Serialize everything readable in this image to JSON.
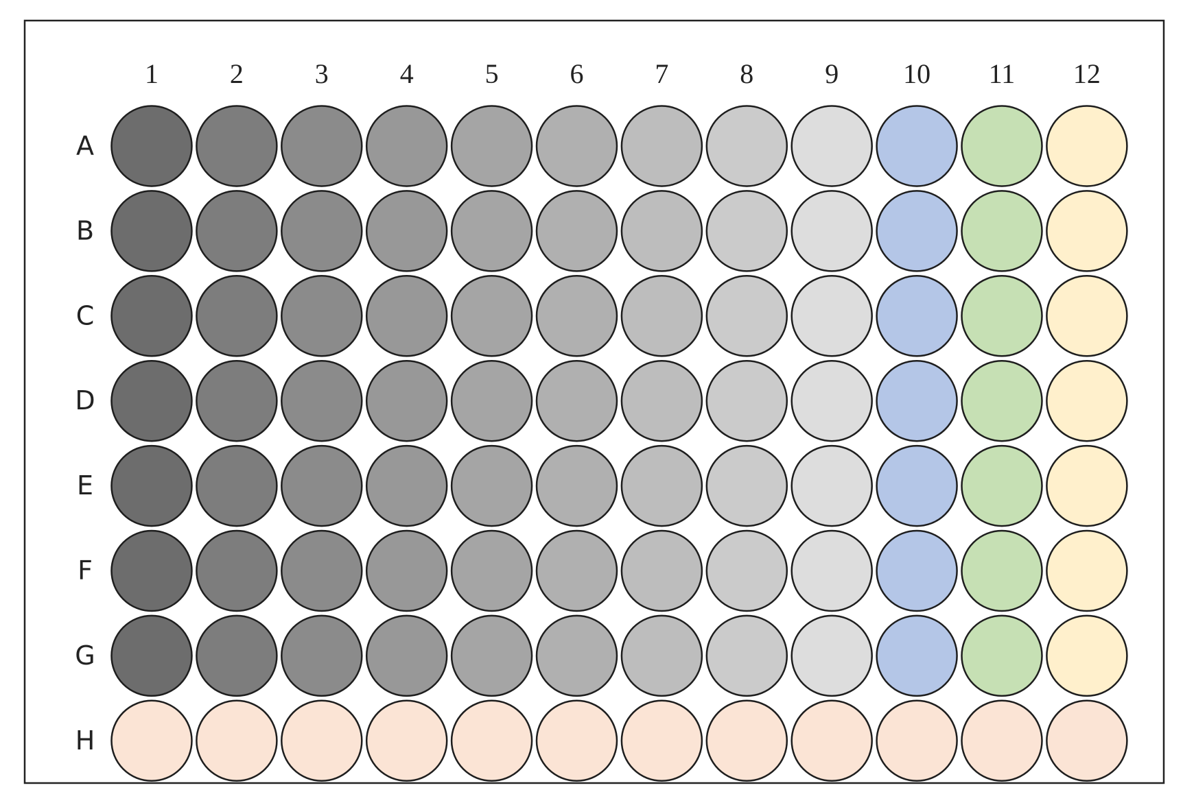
{
  "plate": {
    "columns": [
      "1",
      "2",
      "3",
      "4",
      "5",
      "6",
      "7",
      "8",
      "9",
      "10",
      "11",
      "12"
    ],
    "rows": [
      "A",
      "B",
      "C",
      "D",
      "E",
      "F",
      "G",
      "H"
    ]
  }
}
